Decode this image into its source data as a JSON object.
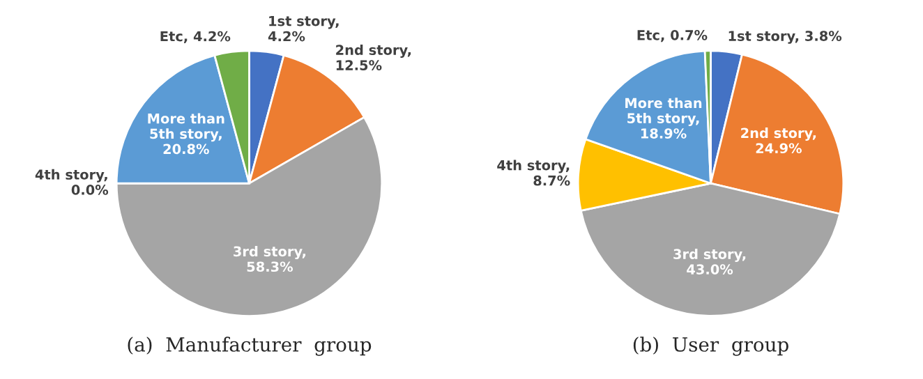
{
  "chart_data": [
    {
      "type": "pie",
      "title": "(a)  Manufacturer  group",
      "categories": [
        "1st story,\n4.2%",
        "2nd story,\n12.5%",
        "3rd story,\n58.3%",
        "4th story,\n0.0%",
        "More than\n5th story,\n20.8%",
        "Etc, 4.2%"
      ],
      "values": [
        4.2,
        12.5,
        58.3,
        0.0,
        20.8,
        4.2
      ],
      "colors": [
        "#4472c4",
        "#ed7d31",
        "#a5a5a5",
        "#ffc000",
        "#5b9bd5",
        "#70ad47"
      ]
    },
    {
      "type": "pie",
      "title": "(b)  User  group",
      "categories": [
        "1st story, 3.8%",
        "2nd story,\n24.9%",
        "3rd story,\n43.0%",
        "4th story,\n8.7%",
        "More than\n5th story,\n18.9%",
        "Etc, 0.7%"
      ],
      "values": [
        3.8,
        24.9,
        43.0,
        8.7,
        18.9,
        0.7
      ],
      "colors": [
        "#4472c4",
        "#ed7d31",
        "#a5a5a5",
        "#ffc000",
        "#5b9bd5",
        "#70ad47"
      ]
    }
  ]
}
